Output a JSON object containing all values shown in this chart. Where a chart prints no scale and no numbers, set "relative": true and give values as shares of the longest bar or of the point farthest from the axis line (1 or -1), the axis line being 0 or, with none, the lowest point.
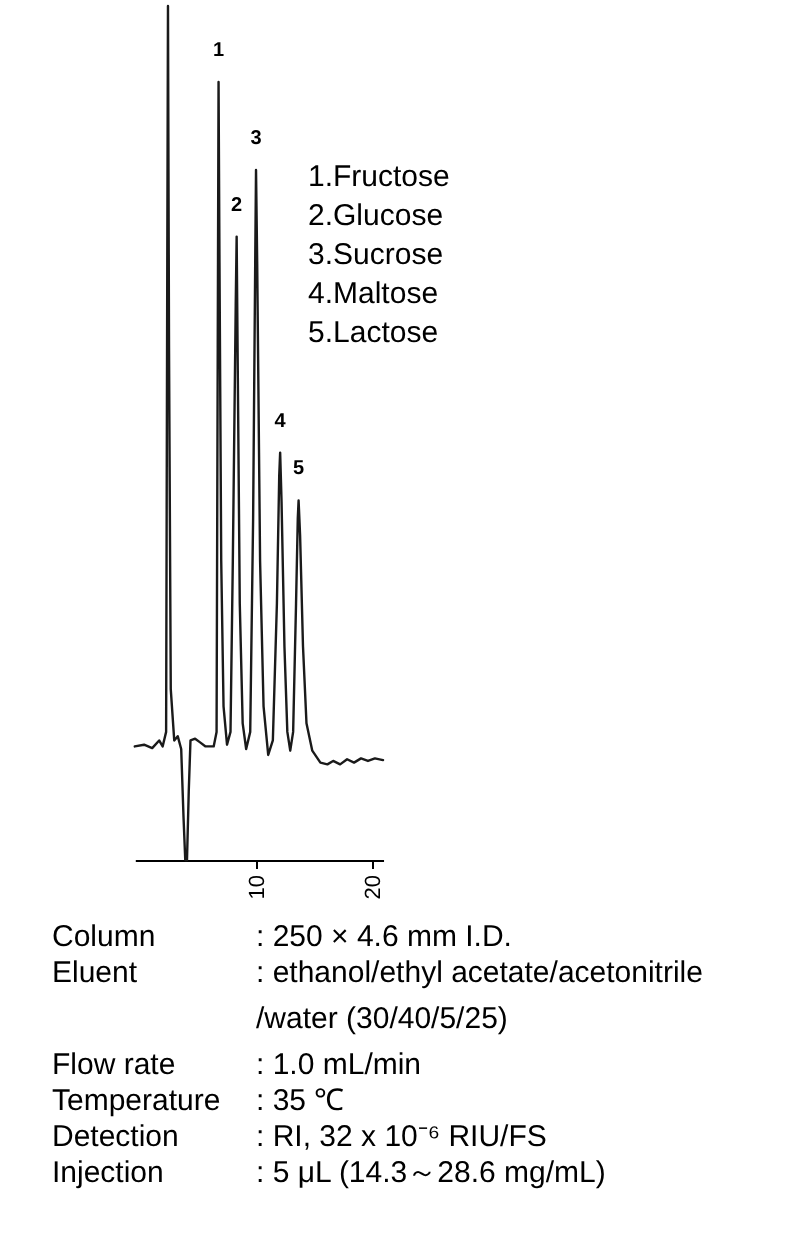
{
  "chart_data": {
    "type": "line",
    "relative": true,
    "tick_labels": "x",
    "xlim": [
      -0.5,
      20.9
    ],
    "xticks": [
      10,
      20
    ],
    "x": [
      -0.5,
      0.3,
      1.0,
      1.6,
      1.9,
      2.2,
      2.3,
      2.36,
      2.45,
      2.6,
      2.9,
      3.2,
      3.5,
      3.7,
      3.85,
      4.0,
      4.15,
      4.3,
      4.7,
      5.1,
      5.6,
      6.3,
      6.55,
      6.65,
      6.72,
      6.8,
      6.95,
      7.15,
      7.45,
      7.75,
      7.95,
      8.2,
      8.28,
      8.36,
      8.55,
      8.8,
      9.1,
      9.45,
      9.7,
      9.88,
      9.95,
      10.05,
      10.3,
      10.6,
      11.0,
      11.4,
      11.75,
      11.95,
      12.03,
      12.15,
      12.4,
      12.65,
      12.9,
      13.15,
      13.4,
      13.55,
      13.62,
      13.75,
      14.0,
      14.3,
      14.8,
      15.5,
      16.1,
      16.6,
      17.2,
      17.8,
      18.4,
      19.0,
      19.6,
      20.2,
      20.9
    ],
    "series": [
      {
        "color": "#1a1a1a",
        "values": [
          0.133,
          0.135,
          0.131,
          0.14,
          0.133,
          0.15,
          0.7,
          1.0,
          0.6,
          0.2,
          0.14,
          0.145,
          0.13,
          0.05,
          0.0,
          0.0,
          0.08,
          0.14,
          0.142,
          0.138,
          0.133,
          0.133,
          0.15,
          0.6,
          0.911,
          0.7,
          0.35,
          0.18,
          0.135,
          0.15,
          0.35,
          0.65,
          0.73,
          0.6,
          0.3,
          0.16,
          0.13,
          0.15,
          0.4,
          0.7,
          0.808,
          0.7,
          0.35,
          0.18,
          0.123,
          0.14,
          0.3,
          0.45,
          0.477,
          0.42,
          0.25,
          0.15,
          0.128,
          0.15,
          0.3,
          0.4,
          0.421,
          0.38,
          0.25,
          0.16,
          0.128,
          0.114,
          0.112,
          0.116,
          0.112,
          0.118,
          0.114,
          0.119,
          0.116,
          0.119,
          0.117
        ]
      }
    ],
    "annotations": [
      {
        "text": "1",
        "x": 6.72,
        "y": 0.911
      },
      {
        "text": "2",
        "x": 8.28,
        "y": 0.73
      },
      {
        "text": "3",
        "x": 9.95,
        "y": 0.808
      },
      {
        "text": "4",
        "x": 12.03,
        "y": 0.477
      },
      {
        "text": "5",
        "x": 13.62,
        "y": 0.421
      },
      "1.Fructose",
      "2.Glucose",
      "3.Sucrose",
      "4.Maltose",
      "5.Lactose",
      "Column",
      ": 250 × 4.6 mm I.D.",
      "Eluent",
      ": ethanol/ethyl acetate/acetonitrile\n/water (30/40/5/25)",
      "Flow rate",
      ": 1.0 mL/min",
      "Temperature",
      ": 35 ℃",
      "Detection",
      ": RI, 32 x 10⁻⁶ RIU/FS",
      "Injection",
      ": 5 μL (14.3～28.6 mg/mL)"
    ]
  }
}
